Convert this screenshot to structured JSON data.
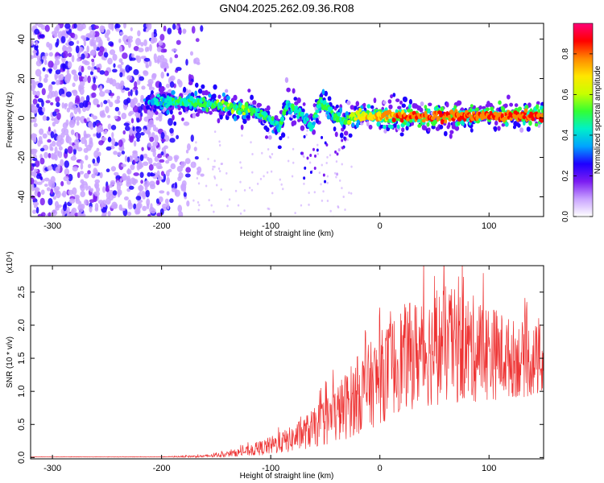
{
  "figure_title": "GN04.2025.262.09.36.R08",
  "chart_data": [
    {
      "type": "heatmap",
      "title": "GN04.2025.262.09.36.R08",
      "xlabel": "Height of straight line (km)",
      "ylabel": "Frequency (Hz)",
      "xlim": [
        -320,
        150
      ],
      "ylim": [
        -50,
        48
      ],
      "xticks": [
        -300,
        -200,
        -100,
        0,
        100
      ],
      "xtick_labels": [
        "-300",
        "-200",
        "-100",
        "0",
        "100"
      ],
      "yticks": [
        -40,
        -20,
        0,
        20,
        40
      ],
      "ytick_labels": [
        "-40",
        "-20",
        "0",
        "20",
        "40"
      ],
      "colorbar": {
        "label": "Normalized spectral amplitude",
        "range": [
          0.0,
          0.95
        ],
        "ticks": [
          0.0,
          0.2,
          0.4,
          0.6,
          0.8
        ],
        "tick_labels": [
          "0.0",
          "0.2",
          "0.4",
          "0.6",
          "0.8"
        ],
        "colormap": [
          "#ffffff",
          "#c9a3ff",
          "#7b1cf2",
          "#1e00ff",
          "#00a4ff",
          "#00f0c8",
          "#33ff33",
          "#c8ff00",
          "#ffe600",
          "#ff8800",
          "#ff0000",
          "#ff0077"
        ]
      },
      "ridge": {
        "x": [
          -215,
          -200,
          -170,
          -140,
          -120,
          -105,
          -92,
          -85,
          -78,
          -70,
          -62,
          -55,
          -48,
          -40,
          -32,
          -25,
          -15,
          0,
          30,
          60,
          100,
          150
        ],
        "freq": [
          9,
          8,
          8,
          6,
          4,
          1,
          -5,
          7,
          4,
          0,
          -4,
          9,
          5,
          0,
          -2,
          1,
          1,
          1,
          1,
          1,
          1,
          1
        ],
        "amplitude": [
          0.3,
          0.45,
          0.5,
          0.55,
          0.55,
          0.45,
          0.45,
          0.45,
          0.5,
          0.45,
          0.45,
          0.5,
          0.5,
          0.45,
          0.5,
          0.6,
          0.7,
          0.8,
          0.85,
          0.85,
          0.85,
          0.85
        ]
      },
      "noise_region_x": [
        -320,
        -170
      ]
    },
    {
      "type": "line",
      "xlabel": "Height of straight line (km)",
      "ylabel": "SNR (10 * v/v)",
      "y_multiplier": "(x10⁴)",
      "color": "#ee3333",
      "xlim": [
        -320,
        150
      ],
      "ylim": [
        -0.02,
        2.9
      ],
      "xticks": [
        -300,
        -200,
        -100,
        0,
        100
      ],
      "xtick_labels": [
        "-300",
        "-200",
        "-100",
        "0",
        "100"
      ],
      "yticks": [
        0.0,
        0.5,
        1.0,
        1.5,
        2.0,
        2.5
      ],
      "ytick_labels": [
        "0.0",
        "0.5",
        "1.0",
        "1.5",
        "2.0",
        "2.5"
      ],
      "envelope": {
        "x": [
          -320,
          -200,
          -160,
          -140,
          -120,
          -100,
          -80,
          -60,
          -40,
          -20,
          0,
          20,
          40,
          60,
          80,
          100,
          120,
          150
        ],
        "mean": [
          0.01,
          0.01,
          0.02,
          0.05,
          0.1,
          0.18,
          0.28,
          0.45,
          0.65,
          0.95,
          1.2,
          1.5,
          1.6,
          1.7,
          1.65,
          1.6,
          1.5,
          1.45
        ],
        "spread": [
          0.003,
          0.004,
          0.02,
          0.04,
          0.08,
          0.14,
          0.2,
          0.3,
          0.45,
          0.6,
          0.7,
          0.8,
          0.85,
          0.9,
          0.85,
          0.75,
          0.6,
          0.55
        ]
      }
    }
  ]
}
